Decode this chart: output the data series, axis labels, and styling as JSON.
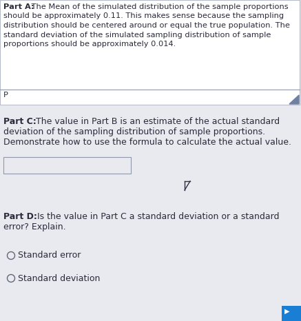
{
  "bg_color": "#dde0e8",
  "section_bg": "#e8eaef",
  "part_a_text_bold": "Part A:",
  "part_a_text_rest": " The Mean of the simulated distribution of the sample proportions\nshould be approximately 0.11. This makes sense because the sampling\ndistribution should be centered around or equal the true population. The\nstandard deviation of the simulated sampling distribution of sample\nproportions should be approximately 0.014.",
  "part_a_box_color": "#ffffff",
  "part_a_border_color": "#b8bcc8",
  "input_label": "P",
  "input_bg": "#e0e2ea",
  "input_border": "#9098aa",
  "part_c_title": "Part C:",
  "part_c_rest": " The value in Part B is an estimate of the actual standard\ndeviation of the sampling distribution of sample proportions.\nDemonstrate how to use the formula to calculate the actual value.",
  "part_c_box_bg": "#e8eaef",
  "part_c_box_border": "#9098aa",
  "part_d_title": "Part D:",
  "part_d_rest": " Is the value in Part C a standard deviation or a standard\nerror? Explain.",
  "radio_options": [
    "Standard error",
    "Standard deviation"
  ],
  "title_color": "#1a1a2e",
  "text_color": "#2a2a3a",
  "blue_corner_color": "#1a7fd4",
  "triangle_color": "#7080a0",
  "font_size_a": 8.2,
  "font_size_cd": 9.0,
  "font_size_radio": 9.0
}
